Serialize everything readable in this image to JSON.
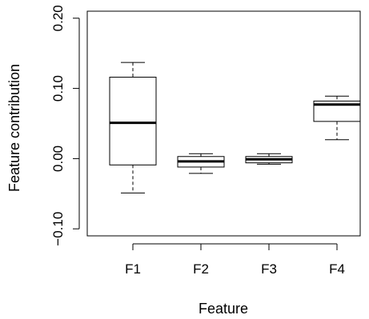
{
  "chart_data": {
    "type": "boxplot",
    "xlabel": "Feature",
    "ylabel": "Feature contribution",
    "ylim": [
      -0.11,
      0.21
    ],
    "yticks": [
      -0.1,
      0.0,
      0.1,
      0.2
    ],
    "ytick_labels": [
      "−0.10",
      "0.00",
      "0.10",
      "0.20"
    ],
    "categories": [
      "F1",
      "F2",
      "F3",
      "F4"
    ],
    "boxes": [
      {
        "label": "F1",
        "whisker_low": -0.049,
        "q1": -0.009,
        "median": 0.051,
        "q3": 0.116,
        "whisker_high": 0.137
      },
      {
        "label": "F2",
        "whisker_low": -0.021,
        "q1": -0.012,
        "median": -0.004,
        "q3": 0.003,
        "whisker_high": 0.007
      },
      {
        "label": "F3",
        "whisker_low": -0.008,
        "q1": -0.006,
        "median": -0.001,
        "q3": 0.003,
        "whisker_high": 0.007
      },
      {
        "label": "F4",
        "whisker_low": 0.027,
        "q1": 0.053,
        "median": 0.077,
        "q3": 0.082,
        "whisker_high": 0.089
      }
    ],
    "grid": false,
    "legend": "none"
  }
}
